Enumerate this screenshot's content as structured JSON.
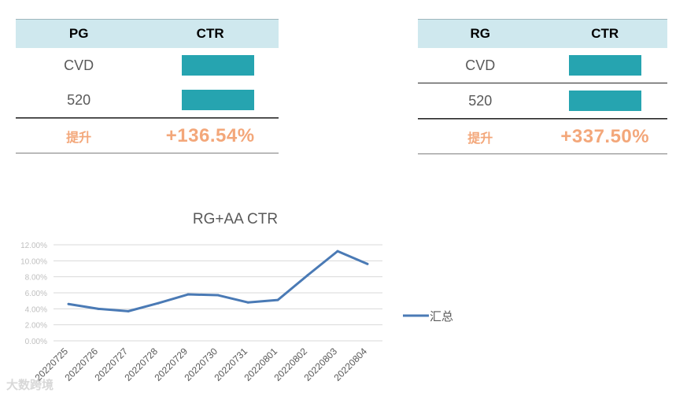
{
  "tables": [
    {
      "headers": [
        "PG",
        "CTR"
      ],
      "rows": [
        {
          "label": "CVD"
        },
        {
          "label": "520"
        }
      ],
      "lift_label": "提升",
      "lift_value": "+136.54%"
    },
    {
      "headers": [
        "RG",
        "CTR"
      ],
      "rows": [
        {
          "label": "CVD"
        },
        {
          "label": "520"
        }
      ],
      "lift_label": "提升",
      "lift_value": "+337.50%"
    }
  ],
  "chart_data": {
    "type": "line",
    "title": "RG+AA CTR",
    "categories": [
      "20220725",
      "20220726",
      "20220727",
      "20220728",
      "20220729",
      "20220730",
      "20220731",
      "20220801",
      "20220802",
      "20220803",
      "20220804"
    ],
    "series": [
      {
        "name": "汇总",
        "values": [
          4.6,
          4.0,
          3.7,
          4.7,
          5.8,
          5.7,
          4.8,
          5.1,
          8.2,
          11.2,
          9.6
        ]
      }
    ],
    "y_ticks": [
      "0.00%",
      "2.00%",
      "4.00%",
      "6.00%",
      "8.00%",
      "10.00%",
      "12.00%"
    ],
    "ylim": [
      0,
      12
    ],
    "legend_position": "right",
    "grid": true
  },
  "colors": {
    "bar": "#26a4b0",
    "accent": "#f3a77a",
    "line": "#4a7ab5"
  },
  "watermark": "大数跨境"
}
